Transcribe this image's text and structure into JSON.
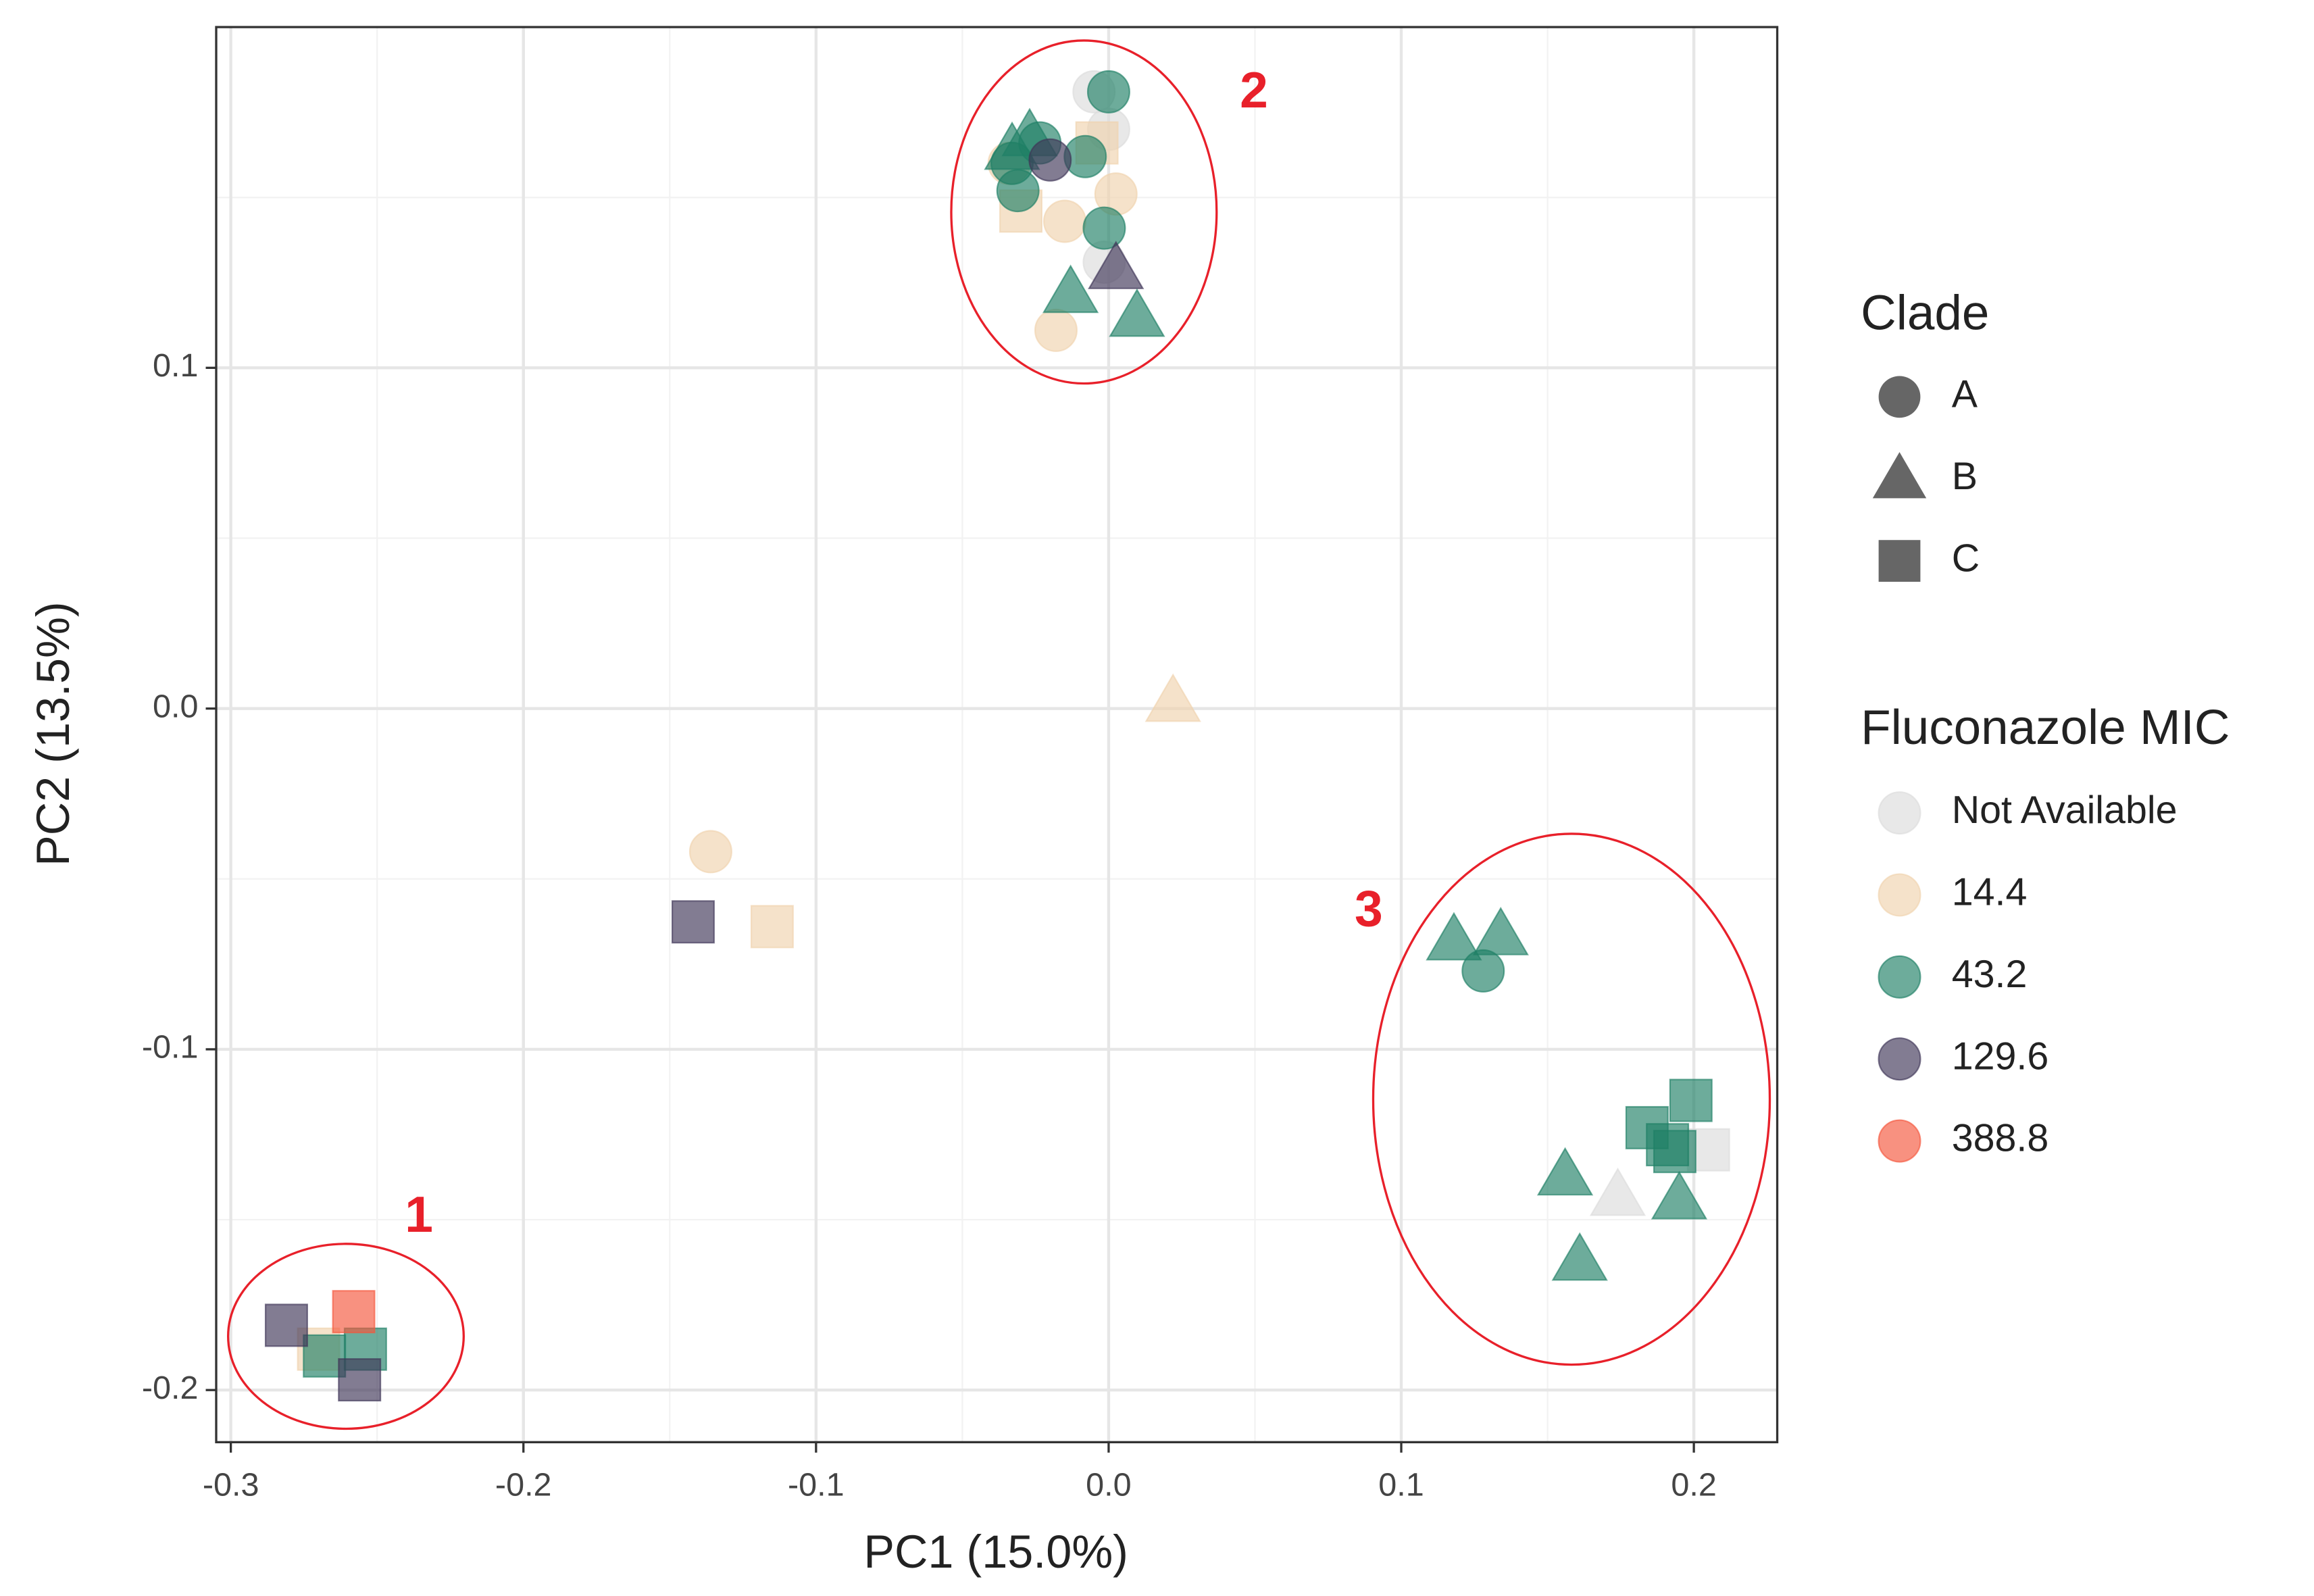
{
  "chart_data": {
    "type": "scatter",
    "x_label": "PC1 (15.0%)",
    "y_label": "PC2 (13.5%)",
    "xlim": [
      -0.305,
      0.2285
    ],
    "ylim": [
      -0.2153,
      0.2
    ],
    "xticks": [
      -0.3,
      -0.2,
      -0.1,
      {
        "value": 0,
        "label": "0.0"
      },
      0.1,
      0.2
    ],
    "yticks": [
      -0.2,
      -0.1,
      {
        "value": 0,
        "label": "0.0"
      },
      0.1
    ],
    "grid": true,
    "opacity": 0.65,
    "shape_legend": {
      "title": "Clade",
      "labels": [
        "A",
        "B",
        "C"
      ],
      "color": "#666666"
    },
    "color_legend_title": "Fluconazole MIC",
    "series": [
      {
        "name": "Not Available",
        "color": "#dcdcdc",
        "x": [
          -0.005,
          0,
          -0.0015,
          0.205,
          0.174
        ],
        "y": [
          0.181,
          0.17,
          0.131,
          -0.1295,
          -0.143
        ],
        "clade": [
          "A",
          "A",
          "A",
          "C",
          "B"
        ]
      },
      {
        "name": "14.4",
        "color": "#f0d2ae",
        "x": [
          -0.034,
          -0.004,
          -0.03,
          -0.015,
          0.0025,
          -0.018,
          0.022,
          -0.136,
          -0.115,
          -0.27
        ],
        "y": [
          0.16,
          0.166,
          0.146,
          0.143,
          0.151,
          0.111,
          0.002,
          -0.042,
          -0.064,
          -0.188
        ],
        "clade": [
          "A",
          "C",
          "C",
          "A",
          "A",
          "A",
          "B",
          "A",
          "C",
          "C"
        ]
      },
      {
        "name": "43.2",
        "color": "#1f8066",
        "x": [
          0,
          -0.027,
          -0.0235,
          -0.033,
          -0.008,
          -0.031,
          -0.0015,
          -0.013,
          0.0097,
          -0.033,
          0.118,
          0.134,
          0.128,
          0.184,
          0.199,
          0.191,
          0.1935,
          0.156,
          0.195,
          0.161,
          -0.268,
          -0.254
        ],
        "y": [
          0.181,
          0.168,
          0.166,
          0.16,
          0.162,
          0.152,
          0.141,
          0.122,
          0.115,
          0.164,
          -0.068,
          -0.0665,
          -0.077,
          -0.123,
          -0.115,
          -0.128,
          -0.13,
          -0.137,
          -0.144,
          -0.162,
          -0.19,
          -0.188
        ],
        "clade": [
          "A",
          "B",
          "A",
          "A",
          "A",
          "A",
          "A",
          "B",
          "B",
          "B",
          "B",
          "B",
          "A",
          "C",
          "C",
          "C",
          "C",
          "B",
          "B",
          "B",
          "C",
          "C"
        ]
      },
      {
        "name": "129.6",
        "color": "#3f3558",
        "x": [
          -0.02,
          0.0025,
          -0.142,
          -0.281,
          -0.256
        ],
        "y": [
          0.161,
          0.129,
          -0.0626,
          -0.181,
          -0.197
        ],
        "clade": [
          "A",
          "B",
          "C",
          "C",
          "C"
        ]
      },
      {
        "name": "388.8",
        "color": "#f4563c",
        "x": [
          -0.258
        ],
        "y": [
          -0.177
        ],
        "clade": [
          "C"
        ]
      }
    ],
    "annotations": [
      {
        "text": "1"
      },
      {
        "text": "2"
      },
      {
        "text": "3"
      }
    ]
  }
}
